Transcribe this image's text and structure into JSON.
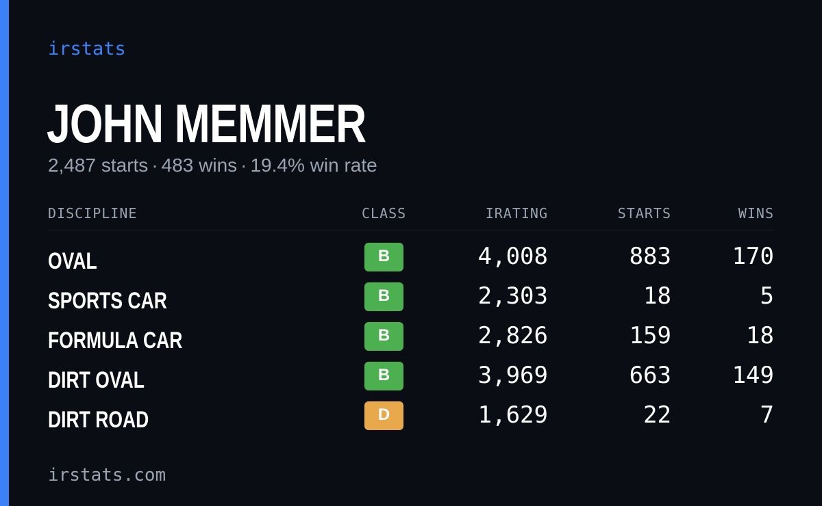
{
  "brand": "irstats",
  "driver": {
    "name": "JOHN MEMMER",
    "starts": "2,487 starts",
    "wins": "483 wins",
    "win_rate": "19.4% win rate",
    "separator": "·"
  },
  "table": {
    "headers": {
      "discipline": "DISCIPLINE",
      "class": "CLASS",
      "irating": "IRATING",
      "starts": "STARTS",
      "wins": "WINS"
    },
    "rows": [
      {
        "discipline": "OVAL",
        "class": "B",
        "class_color": "#4caf50",
        "irating": "4,008",
        "starts": "883",
        "wins": "170"
      },
      {
        "discipline": "SPORTS CAR",
        "class": "B",
        "class_color": "#4caf50",
        "irating": "2,303",
        "starts": "18",
        "wins": "5"
      },
      {
        "discipline": "FORMULA CAR",
        "class": "B",
        "class_color": "#4caf50",
        "irating": "2,826",
        "starts": "159",
        "wins": "18"
      },
      {
        "discipline": "DIRT OVAL",
        "class": "B",
        "class_color": "#4caf50",
        "irating": "3,969",
        "starts": "663",
        "wins": "149"
      },
      {
        "discipline": "DIRT ROAD",
        "class": "D",
        "class_color": "#e8a94c",
        "irating": "1,629",
        "starts": "22",
        "wins": "7"
      }
    ]
  },
  "footer": "irstats.com",
  "colors": {
    "accent": "#3b82f6",
    "background": "#0b0d14",
    "muted_text": "#9aa3b2",
    "class_b": "#4caf50",
    "class_d": "#e8a94c"
  }
}
